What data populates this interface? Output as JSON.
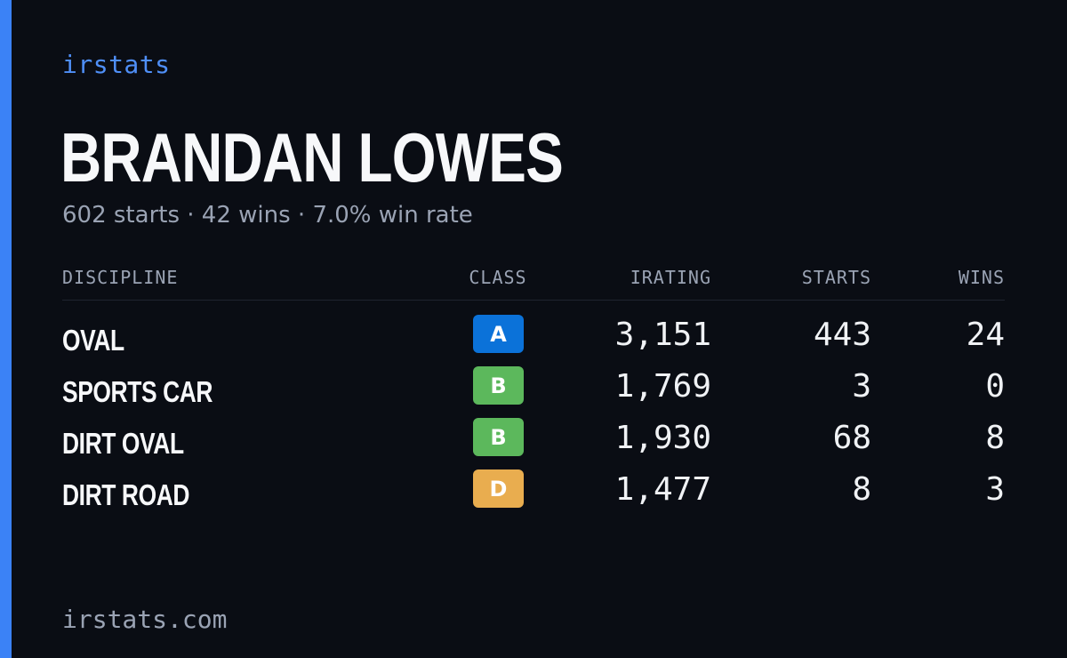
{
  "brand": "irstats",
  "player": {
    "name": "BRANDAN LOWES",
    "summary": "602 starts · 42 wins · 7.0% win rate"
  },
  "table": {
    "headers": {
      "discipline": "DISCIPLINE",
      "class": "CLASS",
      "irating": "IRATING",
      "starts": "STARTS",
      "wins": "WINS"
    },
    "rows": [
      {
        "discipline": "OVAL",
        "class": "A",
        "class_color": "#0b72d9",
        "irating": "3,151",
        "starts": "443",
        "wins": "24"
      },
      {
        "discipline": "SPORTS CAR",
        "class": "B",
        "class_color": "#5cb85c",
        "irating": "1,769",
        "starts": "3",
        "wins": "0"
      },
      {
        "discipline": "DIRT OVAL",
        "class": "B",
        "class_color": "#5cb85c",
        "irating": "1,930",
        "starts": "68",
        "wins": "8"
      },
      {
        "discipline": "DIRT ROAD",
        "class": "D",
        "class_color": "#e9ad4f",
        "irating": "1,477",
        "starts": "8",
        "wins": "3"
      }
    ]
  },
  "footer": "irstats.com",
  "colors": {
    "background": "#0a0d14",
    "accent": "#3b82f6"
  }
}
